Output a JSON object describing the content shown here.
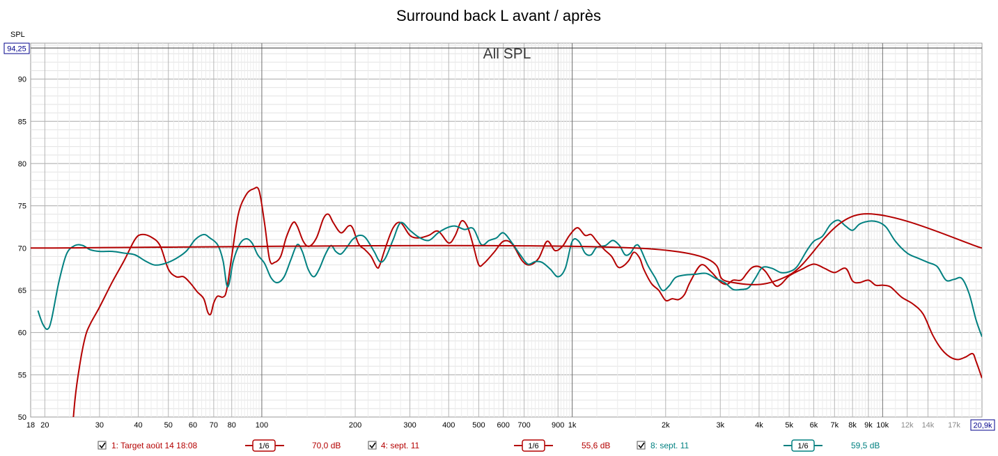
{
  "chart_data": {
    "type": "line",
    "title": "Surround back L avant / après",
    "overlay_label": "All SPL",
    "ylabel": "SPL",
    "x_scale": "log",
    "xlim": [
      18,
      20900
    ],
    "ylim": [
      50,
      94.25
    ],
    "y_top_value_label": "94,25",
    "x_right_value_label": "20,9k",
    "grid": true,
    "y_ticks": [
      {
        "value": 90,
        "label": "90"
      },
      {
        "value": 85,
        "label": "85"
      },
      {
        "value": 80,
        "label": "80"
      },
      {
        "value": 75,
        "label": "75"
      },
      {
        "value": 70,
        "label": "70"
      },
      {
        "value": 65,
        "label": "65"
      },
      {
        "value": 60,
        "label": "60"
      },
      {
        "value": 55,
        "label": "55"
      },
      {
        "value": 50,
        "label": "50"
      }
    ],
    "x_ticks": [
      {
        "value": 18,
        "label": "18"
      },
      {
        "value": 20,
        "label": "20"
      },
      {
        "value": 30,
        "label": "30"
      },
      {
        "value": 40,
        "label": "40"
      },
      {
        "value": 50,
        "label": "50"
      },
      {
        "value": 60,
        "label": "60"
      },
      {
        "value": 70,
        "label": "70"
      },
      {
        "value": 80,
        "label": "80"
      },
      {
        "value": 100,
        "label": "100"
      },
      {
        "value": 200,
        "label": "200"
      },
      {
        "value": 300,
        "label": "300"
      },
      {
        "value": 400,
        "label": "400"
      },
      {
        "value": 500,
        "label": "500"
      },
      {
        "value": 600,
        "label": "600"
      },
      {
        "value": 700,
        "label": "700"
      },
      {
        "value": 900,
        "label": "900"
      },
      {
        "value": 1000,
        "label": "1k"
      },
      {
        "value": 2000,
        "label": "2k"
      },
      {
        "value": 3000,
        "label": "3k"
      },
      {
        "value": 4000,
        "label": "4k"
      },
      {
        "value": 5000,
        "label": "5k"
      },
      {
        "value": 6000,
        "label": "6k"
      },
      {
        "value": 7000,
        "label": "7k"
      },
      {
        "value": 8000,
        "label": "8k"
      },
      {
        "value": 9000,
        "label": "9k"
      },
      {
        "value": 10000,
        "label": "10k"
      },
      {
        "value": 12000,
        "label": "12k",
        "muted": true
      },
      {
        "value": 14000,
        "label": "14k",
        "muted": true
      },
      {
        "value": 17000,
        "label": "17k",
        "muted": true
      }
    ],
    "series": [
      {
        "name": "1: Target août 14 18:08",
        "color": "#b40000",
        "smoothing": "1/6",
        "level_label": "70,0 dB",
        "points": [
          [
            18,
            70
          ],
          [
            1600,
            70
          ],
          [
            3200,
            66
          ],
          [
            5000,
            66.8
          ],
          [
            8500,
            74
          ],
          [
            20900,
            70
          ]
        ]
      },
      {
        "name": "4: sept. 11",
        "color": "#b40000",
        "smoothing": "1/6",
        "level_label": "55,6 dB",
        "points": [
          [
            24,
            44
          ],
          [
            25,
            52
          ],
          [
            26,
            56.5
          ],
          [
            27,
            59.5
          ],
          [
            28,
            61
          ],
          [
            30,
            63
          ],
          [
            33,
            66
          ],
          [
            36,
            68.5
          ],
          [
            39,
            71
          ],
          [
            41,
            71.6
          ],
          [
            44,
            71.3
          ],
          [
            47,
            70.3
          ],
          [
            50,
            67.5
          ],
          [
            53,
            66.6
          ],
          [
            56,
            66.6
          ],
          [
            59,
            65.8
          ],
          [
            62,
            64.8
          ],
          [
            65,
            64
          ],
          [
            67,
            62.4
          ],
          [
            68.5,
            62.2
          ],
          [
            70,
            63.5
          ],
          [
            72,
            64.3
          ],
          [
            75,
            64.2
          ],
          [
            77,
            65
          ],
          [
            80,
            69
          ],
          [
            84,
            74
          ],
          [
            89,
            76.3
          ],
          [
            94,
            77
          ],
          [
            98,
            76.8
          ],
          [
            102,
            73
          ],
          [
            106,
            68.6
          ],
          [
            110,
            68.3
          ],
          [
            115,
            69
          ],
          [
            120,
            71.3
          ],
          [
            126,
            73
          ],
          [
            130,
            72.6
          ],
          [
            136,
            70.8
          ],
          [
            142,
            70.2
          ],
          [
            150,
            71.2
          ],
          [
            158,
            73.5
          ],
          [
            164,
            74
          ],
          [
            170,
            73
          ],
          [
            180,
            71.8
          ],
          [
            190,
            72.6
          ],
          [
            196,
            72.4
          ],
          [
            205,
            70.5
          ],
          [
            215,
            69.8
          ],
          [
            225,
            69
          ],
          [
            235,
            67.7
          ],
          [
            240,
            68
          ],
          [
            250,
            70
          ],
          [
            265,
            72.4
          ],
          [
            280,
            73
          ],
          [
            300,
            71.5
          ],
          [
            320,
            71.2
          ],
          [
            345,
            71.5
          ],
          [
            370,
            72
          ],
          [
            400,
            70.6
          ],
          [
            420,
            71.5
          ],
          [
            440,
            73.2
          ],
          [
            460,
            72.5
          ],
          [
            480,
            70.3
          ],
          [
            500,
            68
          ],
          [
            520,
            68.2
          ],
          [
            560,
            69.5
          ],
          [
            600,
            70.8
          ],
          [
            640,
            70.5
          ],
          [
            690,
            68.5
          ],
          [
            730,
            68
          ],
          [
            780,
            68.8
          ],
          [
            830,
            70.8
          ],
          [
            880,
            69.7
          ],
          [
            930,
            70.2
          ],
          [
            980,
            71.5
          ],
          [
            1040,
            72.4
          ],
          [
            1100,
            71.5
          ],
          [
            1150,
            71.6
          ],
          [
            1200,
            70.8
          ],
          [
            1270,
            69.8
          ],
          [
            1340,
            69
          ],
          [
            1400,
            67.8
          ],
          [
            1450,
            67.8
          ],
          [
            1520,
            68.5
          ],
          [
            1580,
            69.5
          ],
          [
            1650,
            68.8
          ],
          [
            1700,
            67.5
          ],
          [
            1800,
            65.8
          ],
          [
            1900,
            65
          ],
          [
            2000,
            63.8
          ],
          [
            2100,
            64
          ],
          [
            2200,
            63.9
          ],
          [
            2300,
            64.5
          ],
          [
            2400,
            66
          ],
          [
            2600,
            68
          ],
          [
            2800,
            67.2
          ],
          [
            3000,
            66
          ],
          [
            3150,
            65.7
          ],
          [
            3300,
            66.2
          ],
          [
            3500,
            66.2
          ],
          [
            3650,
            67
          ],
          [
            3800,
            67.7
          ],
          [
            4000,
            67.8
          ],
          [
            4200,
            67.2
          ],
          [
            4500,
            65.6
          ],
          [
            4700,
            65.7
          ],
          [
            5000,
            66.7
          ],
          [
            5500,
            67.5
          ],
          [
            6000,
            68.1
          ],
          [
            6500,
            67.6
          ],
          [
            7000,
            67.1
          ],
          [
            7600,
            67.6
          ],
          [
            8000,
            66.1
          ],
          [
            8400,
            65.9
          ],
          [
            9000,
            66.2
          ],
          [
            9500,
            65.6
          ],
          [
            10000,
            65.6
          ],
          [
            10600,
            65.4
          ],
          [
            11500,
            64.2
          ],
          [
            12500,
            63.4
          ],
          [
            13500,
            62.2
          ],
          [
            14500,
            59.7
          ],
          [
            15500,
            58
          ],
          [
            16500,
            57.1
          ],
          [
            17500,
            56.8
          ],
          [
            18500,
            57.1
          ],
          [
            19500,
            57.5
          ],
          [
            20000,
            56.6
          ],
          [
            20900,
            54.6
          ]
        ]
      },
      {
        "name": "8: sept. 11",
        "color": "#008080",
        "smoothing": "1/6",
        "level_label": "59,5 dB",
        "points": [
          [
            19,
            62.6
          ],
          [
            19.7,
            61
          ],
          [
            20.4,
            60.4
          ],
          [
            21,
            61.5
          ],
          [
            22.2,
            66
          ],
          [
            23.5,
            69.3
          ],
          [
            25,
            70.3
          ],
          [
            26.5,
            70.3
          ],
          [
            28,
            69.8
          ],
          [
            30,
            69.6
          ],
          [
            33,
            69.6
          ],
          [
            36,
            69.4
          ],
          [
            39,
            69.2
          ],
          [
            42,
            68.5
          ],
          [
            45,
            68
          ],
          [
            48,
            68.1
          ],
          [
            52,
            68.6
          ],
          [
            57,
            69.6
          ],
          [
            61,
            71
          ],
          [
            65,
            71.6
          ],
          [
            68,
            71.2
          ],
          [
            72,
            70.4
          ],
          [
            75,
            68.5
          ],
          [
            77,
            65.7
          ],
          [
            78.5,
            65.8
          ],
          [
            81,
            68.5
          ],
          [
            85,
            70.5
          ],
          [
            89,
            71.1
          ],
          [
            93,
            70.6
          ],
          [
            97,
            69.2
          ],
          [
            102,
            68.2
          ],
          [
            107,
            66.5
          ],
          [
            112,
            65.9
          ],
          [
            118,
            66.6
          ],
          [
            124,
            68.6
          ],
          [
            130,
            70.4
          ],
          [
            135,
            69.6
          ],
          [
            141,
            67.5
          ],
          [
            147,
            66.6
          ],
          [
            153,
            67.5
          ],
          [
            160,
            69.2
          ],
          [
            167,
            70.3
          ],
          [
            173,
            69.6
          ],
          [
            180,
            69.3
          ],
          [
            188,
            70.1
          ],
          [
            196,
            71
          ],
          [
            206,
            71.5
          ],
          [
            216,
            71.2
          ],
          [
            230,
            69.6
          ],
          [
            240,
            68.4
          ],
          [
            250,
            68.8
          ],
          [
            265,
            71
          ],
          [
            280,
            73
          ],
          [
            300,
            72.1
          ],
          [
            320,
            71.3
          ],
          [
            345,
            70.9
          ],
          [
            370,
            71.8
          ],
          [
            395,
            72.4
          ],
          [
            420,
            72.6
          ],
          [
            450,
            72.2
          ],
          [
            480,
            72.3
          ],
          [
            510,
            70.4
          ],
          [
            540,
            70.9
          ],
          [
            570,
            71.2
          ],
          [
            600,
            71.8
          ],
          [
            640,
            70.6
          ],
          [
            680,
            69.2
          ],
          [
            720,
            68.1
          ],
          [
            760,
            68.4
          ],
          [
            800,
            68.3
          ],
          [
            850,
            67.5
          ],
          [
            900,
            66.6
          ],
          [
            950,
            67.6
          ],
          [
            1000,
            70.8
          ],
          [
            1050,
            70.8
          ],
          [
            1100,
            69.4
          ],
          [
            1150,
            69.2
          ],
          [
            1200,
            70.1
          ],
          [
            1280,
            70.3
          ],
          [
            1350,
            70.9
          ],
          [
            1420,
            70.3
          ],
          [
            1480,
            69.2
          ],
          [
            1540,
            69.4
          ],
          [
            1600,
            70.3
          ],
          [
            1650,
            70.1
          ],
          [
            1750,
            68
          ],
          [
            1850,
            66.5
          ],
          [
            1950,
            65
          ],
          [
            2050,
            65.5
          ],
          [
            2150,
            66.5
          ],
          [
            2300,
            66.8
          ],
          [
            2500,
            66.9
          ],
          [
            2700,
            67
          ],
          [
            2900,
            66.4
          ],
          [
            3100,
            65.9
          ],
          [
            3300,
            65.1
          ],
          [
            3500,
            65.1
          ],
          [
            3700,
            65.3
          ],
          [
            3900,
            66.5
          ],
          [
            4100,
            67.7
          ],
          [
            4400,
            67.6
          ],
          [
            4700,
            67.1
          ],
          [
            5000,
            67.2
          ],
          [
            5300,
            67.8
          ],
          [
            5700,
            69.7
          ],
          [
            6000,
            70.8
          ],
          [
            6400,
            71.4
          ],
          [
            6800,
            72.8
          ],
          [
            7200,
            73.3
          ],
          [
            7600,
            72.6
          ],
          [
            8000,
            72.1
          ],
          [
            8400,
            72.8
          ],
          [
            8800,
            73.1
          ],
          [
            9300,
            73.2
          ],
          [
            9800,
            73
          ],
          [
            10300,
            72.4
          ],
          [
            11000,
            70.8
          ],
          [
            12000,
            69.4
          ],
          [
            13000,
            68.8
          ],
          [
            14000,
            68.3
          ],
          [
            15000,
            67.8
          ],
          [
            16000,
            66.2
          ],
          [
            17000,
            66.3
          ],
          [
            18000,
            66.4
          ],
          [
            19000,
            64.6
          ],
          [
            20000,
            61.5
          ],
          [
            20900,
            59.5
          ]
        ]
      }
    ]
  }
}
